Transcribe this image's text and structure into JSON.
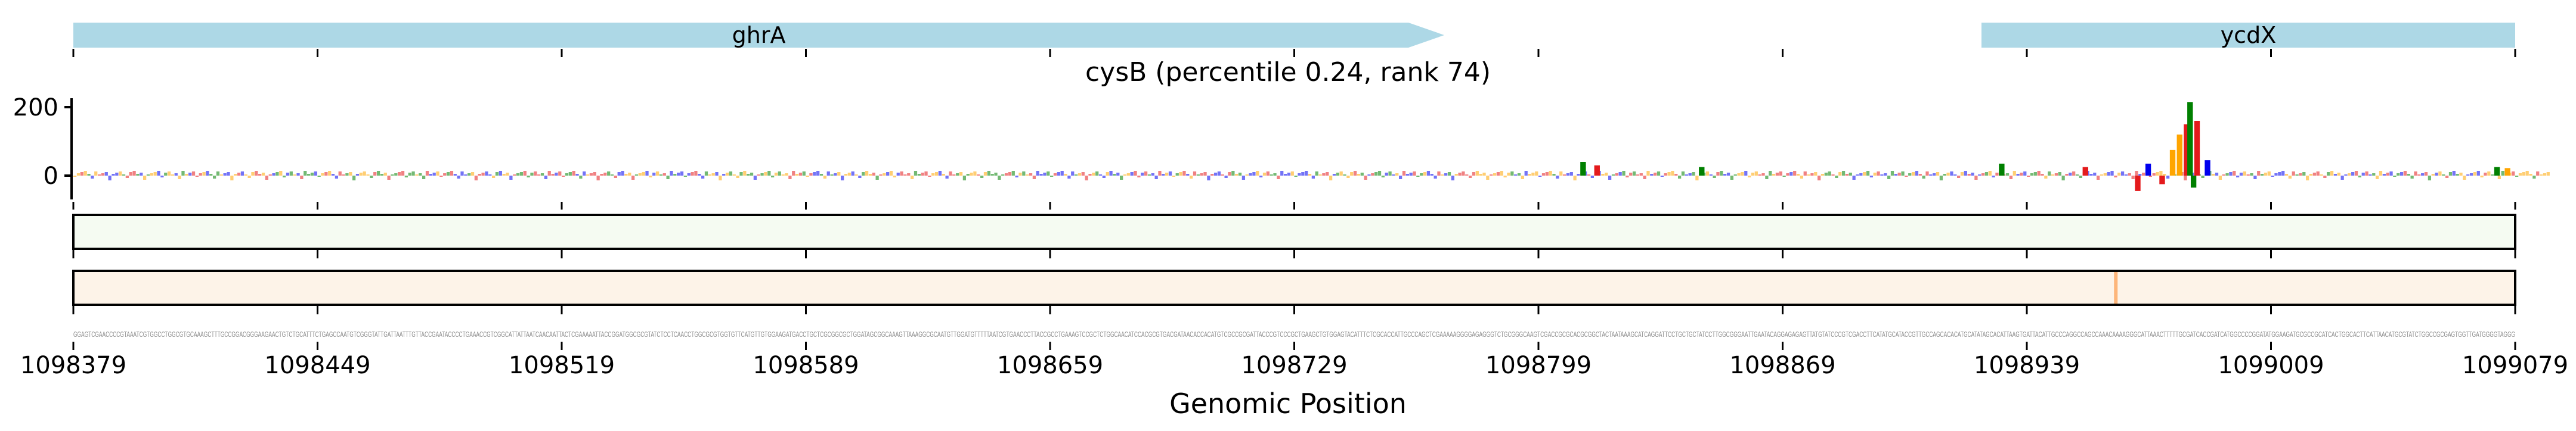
{
  "chart_data": [
    {
      "type": "gene-track",
      "genes": [
        {
          "name": "ghrA",
          "start": 1098379,
          "end": 1098772,
          "strand": "+",
          "color": "#add8e6"
        },
        {
          "name": "ycdX",
          "start": 1098926,
          "end": 1099079,
          "strand": "+",
          "color": "#add8e6"
        }
      ],
      "xlim": [
        1098379,
        1099079
      ]
    },
    {
      "type": "sequence-logo",
      "title": "cysB (percentile 0.24, rank 74)",
      "ylabel": "",
      "yticks": [
        0,
        200
      ],
      "ylim": [
        -60,
        230
      ],
      "letter_colors": {
        "A": "#e41a1c",
        "C": "#0000ee",
        "G": "#ffa500",
        "T": "#008000"
      },
      "highlights": [
        {
          "position": 1098811,
          "letter": "T",
          "value": 40
        },
        {
          "position": 1098815,
          "letter": "A",
          "value": 30
        },
        {
          "position": 1098845,
          "letter": "T",
          "value": 25
        },
        {
          "position": 1098931,
          "letter": "T",
          "value": 35
        },
        {
          "position": 1098955,
          "letter": "A",
          "value": 25
        },
        {
          "position": 1098970,
          "letter": "A",
          "value": -45
        },
        {
          "position": 1098973,
          "letter": "C",
          "value": 35
        },
        {
          "position": 1098977,
          "letter": "A",
          "value": -25
        },
        {
          "position": 1098980,
          "letter": "G",
          "value": 75
        },
        {
          "position": 1098982,
          "letter": "G",
          "value": 120
        },
        {
          "position": 1098984,
          "letter": "A",
          "value": 150
        },
        {
          "position": 1098985,
          "letter": "T",
          "value": 215
        },
        {
          "position": 1098986,
          "letter": "T",
          "value": -35
        },
        {
          "position": 1098987,
          "letter": "A",
          "value": 160
        },
        {
          "position": 1098990,
          "letter": "C",
          "value": 45
        },
        {
          "position": 1099073,
          "letter": "T",
          "value": 25
        },
        {
          "position": 1099076,
          "letter": "G",
          "value": 22
        }
      ]
    },
    {
      "type": "heatmap",
      "name": "track-green",
      "color": "#f5fbf2",
      "highlights": []
    },
    {
      "type": "heatmap",
      "name": "track-orange",
      "base_color": "#fdf3e8",
      "highlights": [
        {
          "position": 1098964,
          "color": "#fdb57a"
        }
      ]
    }
  ],
  "axis": {
    "xlabel": "Genomic Position",
    "xticks": [
      "1098379",
      "1098449",
      "1098519",
      "1098589",
      "1098659",
      "1098729",
      "1098799",
      "1098869",
      "1098939",
      "1099009",
      "1099079"
    ],
    "yticks": [
      "200",
      "0"
    ]
  },
  "sequence": "GGAGTCGAACCCCGTAAATCGTGGCCTGGCGTGCAAAGCTTTGCCGGACGGGAAGAACTGTCTGCATTTCTGAGCCAATGTCGGGTATTGATTAATTTGTTACCGAATACCCCTGAAACCGTCGGCATTATTAATCAACAATTACTCGAAAAATTACCGGATGGCGCGTATCTCCTCAACCTGGCGCGTGGTGTTCATGTTGTGGAAGATGACCTGCTCGCGGCGCTGGATAGCGGCAAAGTTAAAGGCGCAATGTTGGATGTTTTTAATCGTGAACCCTTACCGCCTGAAAGTCCGCTCTGGCAACATCCACGCGTGACGATAACACCACATGTCGCCGCGATTACCCGTCCCGCTGAAGCTGTGGAGTACATTTCTCGCACCATTGCCCAGCTCGAAAAAGGGGAGAGGGTCTGCGGGCAAGTCGACCGCGCACGCGGCTACTAATAAAGCATCAGGATTCCTGCTGCTATCCTTGGCGGGAATTGAATACAGGAGAGAGTTATGTATCCCGTCGACCTTCATATGCATACCGTTGCCAGCACACATGCATATAGCACATTAAGTGATTACATTGCCCAGGCCAGCCAAACAAAAGGGCATTAAACTTTTTGCGATCACCGATCATGGCCCCGGATATGGAAGATGCGCCGCATCACTGGCACTTCATTAACATGCGTATCTGGCCGCGAGTGGTTGATGGGGTAGGG"
}
